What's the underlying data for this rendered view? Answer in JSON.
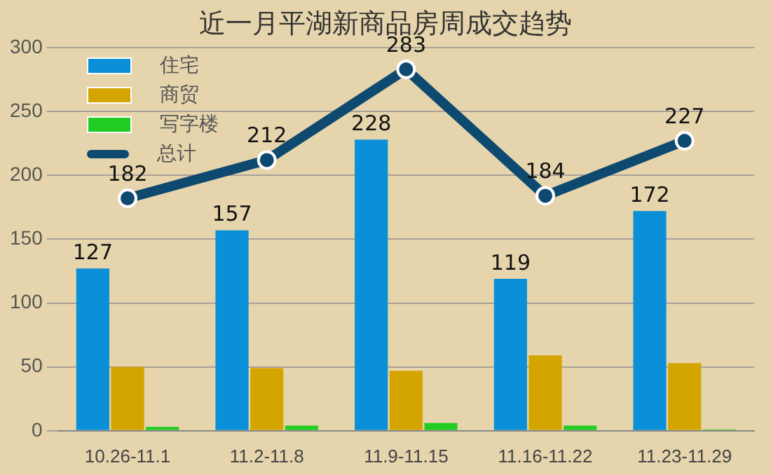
{
  "chart_data": {
    "type": "bar",
    "title": "近一月平湖新商品房周成交趋势",
    "categories": [
      "10.26-11.1",
      "11.2-11.8",
      "11.9-11.15",
      "11.16-11.22",
      "11.23-11.29"
    ],
    "series": [
      {
        "name": "住宅",
        "color": "#0a8fd8",
        "values": [
          127,
          157,
          228,
          119,
          172
        ],
        "value_labels": [
          "127",
          "157",
          "228",
          "119",
          "172"
        ]
      },
      {
        "name": "商贸",
        "color": "#d4a400",
        "values": [
          50,
          49,
          47,
          59,
          53
        ]
      },
      {
        "name": "写字楼",
        "color": "#22cc22",
        "values": [
          3,
          4,
          6,
          4,
          1
        ]
      },
      {
        "name": "总计",
        "type": "line",
        "color": "#0e4a70",
        "values": [
          182,
          212,
          283,
          184,
          227
        ],
        "value_labels": [
          "182",
          "212",
          "283",
          "184",
          "227"
        ],
        "marker": "circle"
      }
    ],
    "ylim": [
      0,
      300
    ],
    "yticks": [
      0,
      50,
      100,
      150,
      200,
      250,
      300
    ],
    "grid": "y",
    "legend": "top left"
  }
}
